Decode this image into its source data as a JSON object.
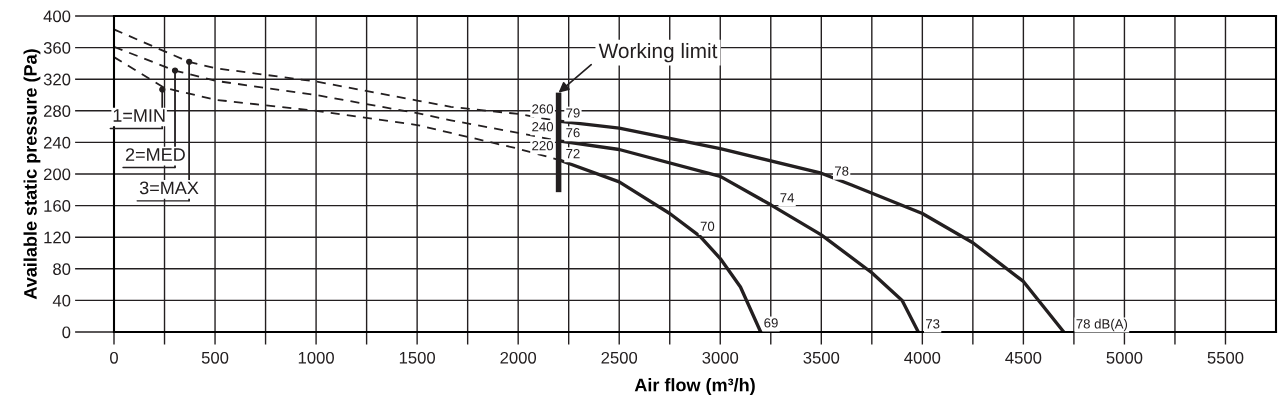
{
  "chart_data": {
    "type": "line",
    "xlabel": "Air flow (m³/h)",
    "ylabel": "Available static pressure (Pa)",
    "xlim": [
      0,
      5750
    ],
    "ylim": [
      0,
      400
    ],
    "xticks": [
      0,
      {
        "value": 250,
        "label": null
      },
      500,
      {
        "value": 750,
        "label": null
      },
      1000,
      {
        "value": 1250,
        "label": null
      },
      1500,
      {
        "value": 1750,
        "label": null
      },
      2000,
      {
        "value": 2250,
        "label": null
      },
      2500,
      {
        "value": 2750,
        "label": null
      },
      3000,
      {
        "value": 3250,
        "label": null
      },
      3500,
      {
        "value": 3750,
        "label": null
      },
      4000,
      {
        "value": 4250,
        "label": null
      },
      4500,
      {
        "value": 4750,
        "label": null
      },
      5000,
      {
        "value": 5250,
        "label": null
      },
      5500
    ],
    "yticks": [
      0,
      40,
      80,
      120,
      160,
      200,
      240,
      280,
      320,
      360,
      400
    ],
    "grid": true,
    "legend": false,
    "series": [
      {
        "color": "#231f20",
        "line_style": "dashed",
        "x": [
          0,
          250,
          500,
          1000,
          1500,
          1667,
          2000,
          2200
        ],
        "values": [
          348,
          309,
          294,
          280,
          262,
          252,
          232,
          218
        ]
      },
      {
        "color": "#231f20",
        "line_style": "dashed",
        "x": [
          0,
          300,
          500,
          1000,
          1500,
          1667,
          2000,
          2200
        ],
        "values": [
          361,
          331,
          318,
          300,
          277,
          268,
          252,
          242
        ]
      },
      {
        "color": "#231f20",
        "line_style": "dashed",
        "x": [
          0,
          370,
          500,
          1000,
          1500,
          1667,
          2000,
          2200
        ],
        "values": [
          383,
          342,
          334,
          317,
          293,
          285,
          276,
          267
        ]
      },
      {
        "color": "#231f20",
        "line_style": "solid",
        "x": [
          2200,
          2500,
          2750,
          2900,
          3000,
          3100,
          3200
        ],
        "values": [
          218,
          190,
          150,
          121,
          93,
          57,
          0
        ]
      },
      {
        "color": "#231f20",
        "line_style": "solid",
        "x": [
          2200,
          2500,
          3000,
          3250,
          3500,
          3750,
          3900,
          3980
        ],
        "values": [
          242,
          231,
          197,
          161,
          123,
          75,
          40,
          0
        ]
      },
      {
        "color": "#231f20",
        "line_style": "solid",
        "x": [
          2200,
          2500,
          3000,
          3500,
          3650,
          4000,
          4250,
          4500,
          4700
        ],
        "values": [
          267,
          258,
          232,
          201,
          186,
          150,
          113,
          64,
          0
        ]
      },
      {
        "color": "#231f20",
        "line_style": "solid",
        "x": [
          2200,
          2200
        ],
        "values": [
          177,
          303
        ]
      }
    ],
    "annotations": [
      {
        "text": "Working limit",
        "x": 2200,
        "y": 303
      },
      {
        "text": "260",
        "x": 2200,
        "y": 267
      },
      {
        "text": "240",
        "x": 2200,
        "y": 242
      },
      {
        "text": "220",
        "x": 2200,
        "y": 218
      },
      {
        "text": "79",
        "x": 2200,
        "y": 267
      },
      {
        "text": "76",
        "x": 2200,
        "y": 242
      },
      {
        "text": "72",
        "x": 2200,
        "y": 218
      },
      {
        "text": "78",
        "x": 3500,
        "y": 201
      },
      {
        "text": "74",
        "x": 3250,
        "y": 161
      },
      {
        "text": "70",
        "x": 2900,
        "y": 121
      },
      {
        "text": "69",
        "x": 3200,
        "y": 0
      },
      {
        "text": "73",
        "x": 3980,
        "y": 0
      },
      {
        "text": "78 dB(A)",
        "x": 4700,
        "y": 0
      },
      {
        "text": "1=MIN",
        "x": 239,
        "y": 307
      },
      {
        "text": "2=MED",
        "x": 302,
        "y": 331
      },
      {
        "text": "3=MAX",
        "x": 372,
        "y": 342
      }
    ]
  }
}
